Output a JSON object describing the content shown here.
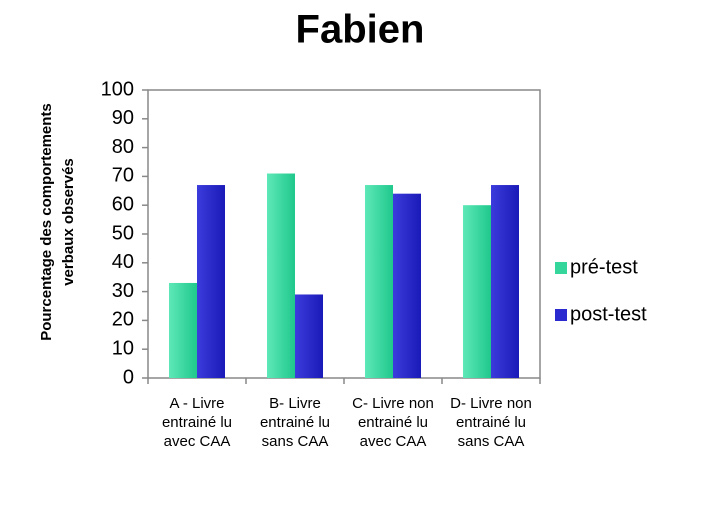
{
  "chart_data": {
    "type": "bar",
    "title": "Fabien",
    "ylabel": "Pourcentage des comportements verbaux observés",
    "categories": [
      "A - Livre entrainé lu avec CAA",
      "B- Livre entrainé lu sans CAA",
      "C- Livre non entrainé lu avec CAA",
      "D- Livre non entrainé lu sans CAA"
    ],
    "series": [
      {
        "name": "pré-test",
        "color": "#34d69c",
        "values": [
          33,
          71,
          67,
          60
        ]
      },
      {
        "name": "post-test",
        "color": "#2a2ad0",
        "values": [
          67,
          29,
          64,
          67
        ]
      }
    ],
    "ylim": [
      0,
      100
    ],
    "yticks": [
      0,
      10,
      20,
      30,
      40,
      50,
      60,
      70,
      80,
      90,
      100
    ],
    "grid": false,
    "legend": "right"
  }
}
